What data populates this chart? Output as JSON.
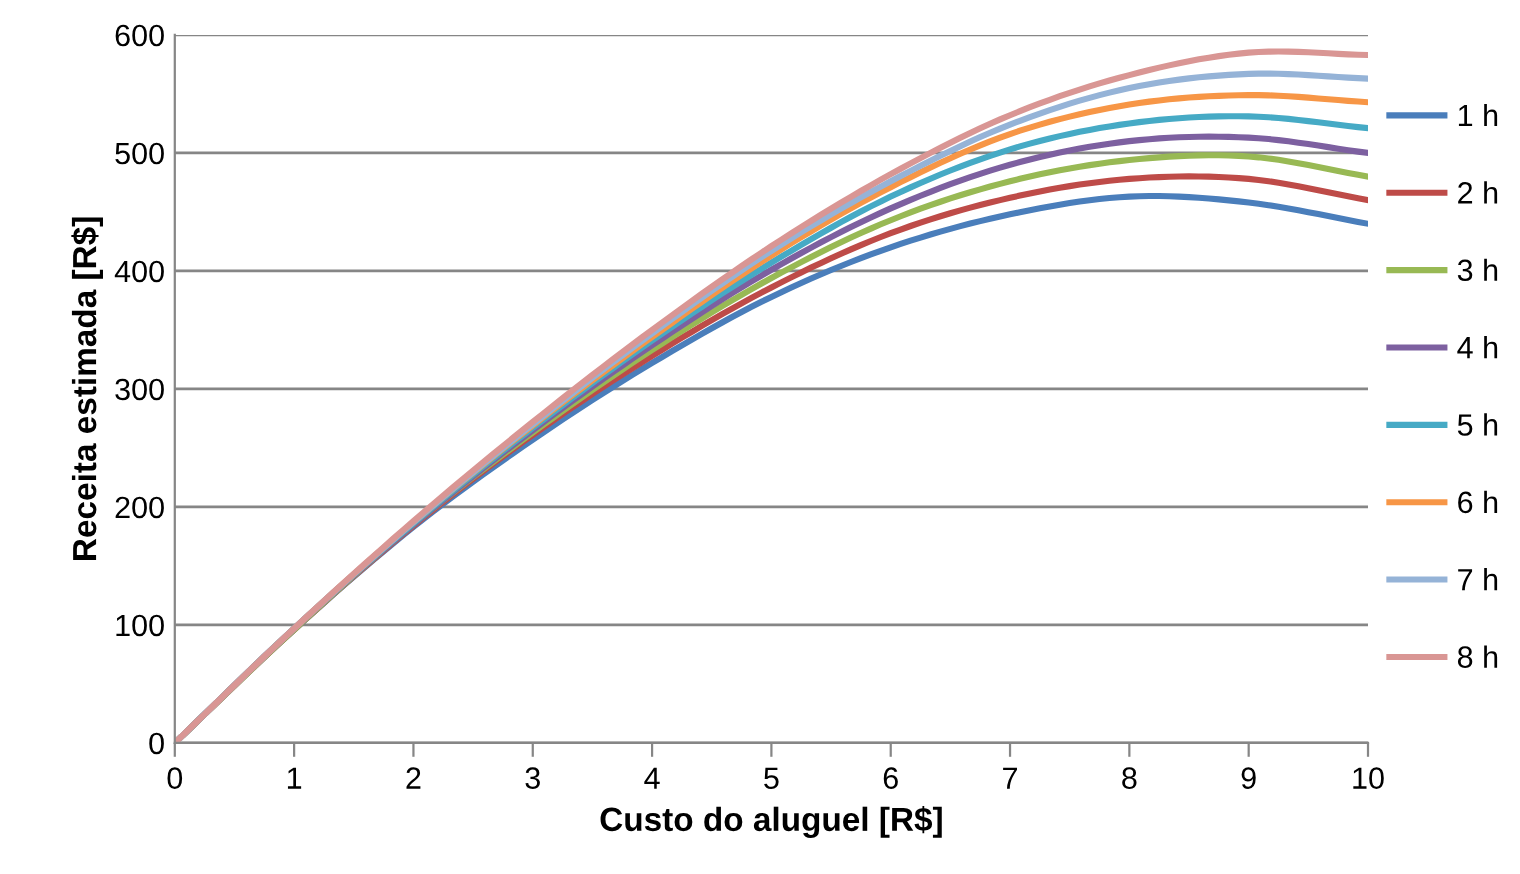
{
  "chart_data": {
    "type": "line",
    "xlabel": "Custo do aluguel [R$]",
    "ylabel": "Receita estimada [R$]",
    "x": [
      0,
      1,
      2,
      3,
      4,
      5,
      6,
      7,
      8,
      9,
      10
    ],
    "xlim": [
      0,
      10
    ],
    "xticks": [
      0,
      1,
      2,
      3,
      4,
      5,
      6,
      7,
      8,
      9,
      10
    ],
    "ylim": [
      0,
      600
    ],
    "yticks": [
      0,
      100,
      200,
      300,
      400,
      500,
      600
    ],
    "grid": "y",
    "legend": "right",
    "marker": "none",
    "line_style": "solid",
    "series": [
      {
        "name": "1 h",
        "color": "#4a7ebb",
        "values": [
          0,
          96,
          183,
          257,
          322,
          378,
          420,
          448,
          463,
          458,
          440
        ]
      },
      {
        "name": "2 h",
        "color": "#be4b48",
        "values": [
          0,
          96,
          184,
          261,
          328,
          386,
          432,
          462,
          478,
          478,
          460
        ]
      },
      {
        "name": "3 h",
        "color": "#98b954",
        "values": [
          0,
          96,
          185,
          263,
          333,
          394,
          443,
          476,
          494,
          497,
          480
        ]
      },
      {
        "name": "4 h",
        "color": "#7d60a0",
        "values": [
          0,
          97,
          185,
          265,
          337,
          401,
          453,
          490,
          510,
          513,
          500
        ]
      },
      {
        "name": "5 h",
        "color": "#46aac5",
        "values": [
          0,
          97,
          186,
          267,
          341,
          407,
          463,
          503,
          525,
          531,
          521
        ]
      },
      {
        "name": "6 h",
        "color": "#f79646",
        "values": [
          0,
          97,
          187,
          269,
          344,
          413,
          471,
          516,
          541,
          549,
          543
        ]
      },
      {
        "name": "7 h",
        "color": "#95b3d7",
        "values": [
          0,
          97,
          187,
          270,
          347,
          417,
          476,
          524,
          555,
          567,
          563
        ]
      },
      {
        "name": "8 h",
        "color": "#d99694",
        "values": [
          0,
          97,
          188,
          272,
          350,
          421,
          482,
          532,
          566,
          585,
          583
        ]
      }
    ]
  }
}
